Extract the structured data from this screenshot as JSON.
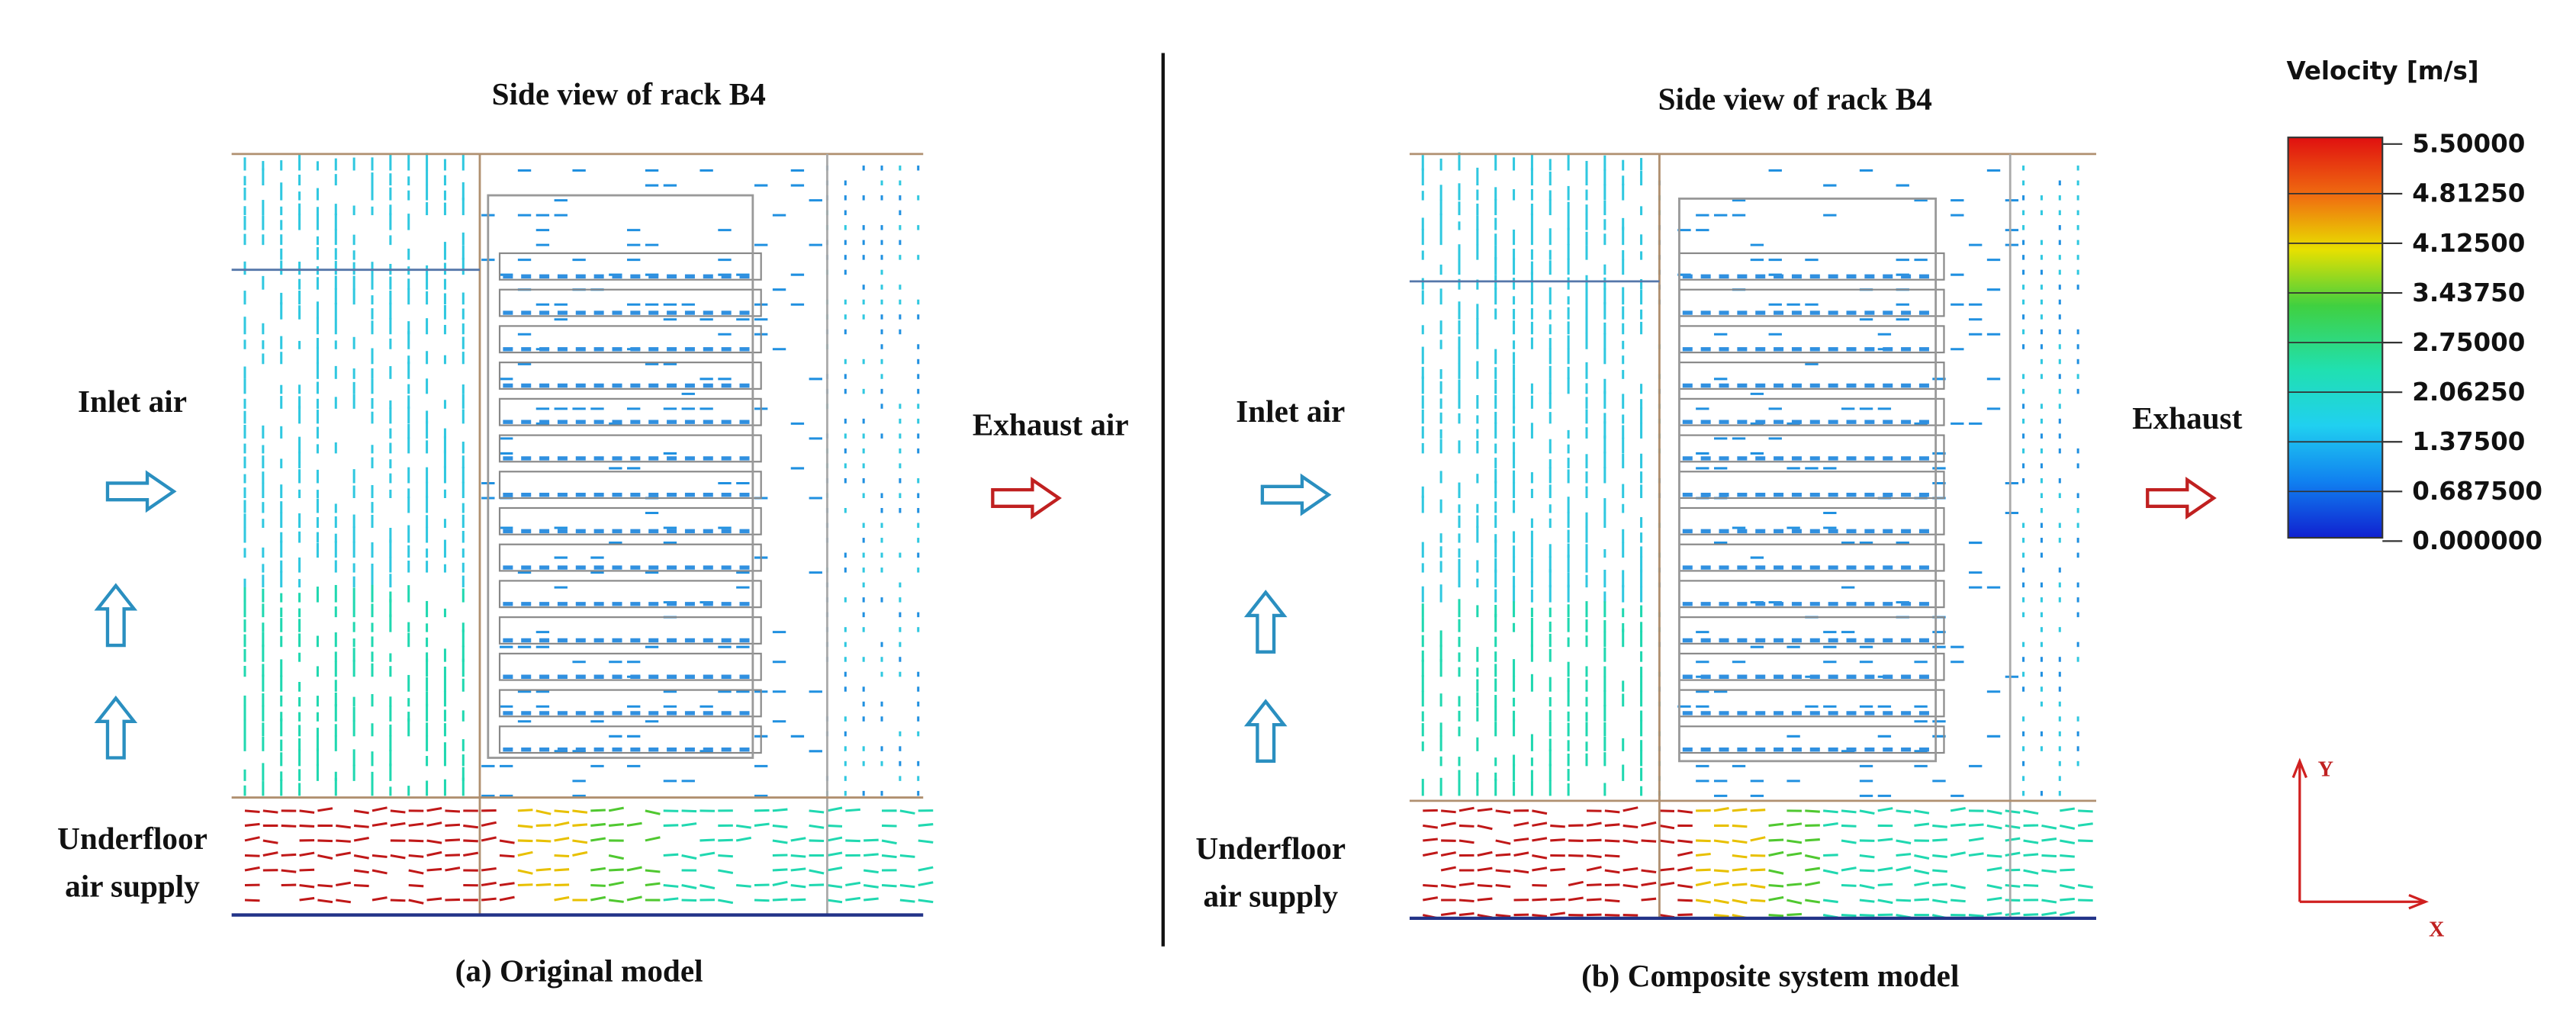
{
  "panel_a": {
    "title": "Side view of rack B4",
    "inlet": "Inlet air",
    "exhaust": "Exhaust air",
    "underfloor": [
      "Underfloor",
      "air supply"
    ],
    "caption": "(a) Original model"
  },
  "panel_b": {
    "title": "Side view of rack B4",
    "inlet": "Inlet air",
    "exhaust": "Exhaust",
    "underfloor": [
      "Underfloor",
      "air supply"
    ],
    "caption": "(b) Composite system model"
  },
  "legend": {
    "title": "Velocity [m/s]",
    "labels": [
      "5.50000",
      "4.81250",
      "4.12500",
      "3.43750",
      "2.75000",
      "2.06250",
      "1.37500",
      "0.687500",
      "0.000000"
    ]
  },
  "axes": {
    "y": "Y",
    "x": "X"
  }
}
